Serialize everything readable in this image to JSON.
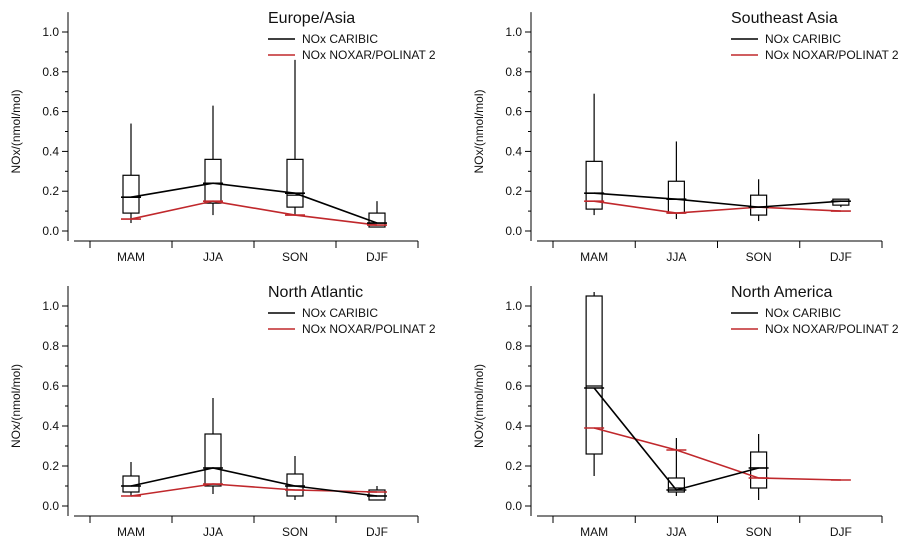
{
  "chart_data": [
    {
      "type": "box-line",
      "title": "Europe/Asia",
      "ylabel": "NOx/(nmol/mol)",
      "ylim": [
        -0.05,
        1.1
      ],
      "yticks": [
        "0.0",
        "0.2",
        "0.4",
        "0.6",
        "0.8",
        "1.0"
      ],
      "categories": [
        "MAM",
        "JJA",
        "SON",
        "DJF"
      ],
      "boxes": [
        {
          "whisker_low": 0.04,
          "q1": 0.09,
          "median": 0.17,
          "q3": 0.28,
          "whisker_high": 0.54
        },
        {
          "whisker_low": 0.08,
          "q1": 0.14,
          "median": 0.24,
          "q3": 0.36,
          "whisker_high": 0.63
        },
        {
          "whisker_low": 0.08,
          "q1": 0.12,
          "median": 0.18,
          "q3": 0.36,
          "whisker_high": 0.86
        },
        {
          "whisker_low": 0.02,
          "q1": 0.02,
          "median": 0.04,
          "q3": 0.09,
          "whisker_high": 0.15
        }
      ],
      "series": [
        {
          "name": "NOx CARIBIC",
          "values": [
            0.17,
            0.24,
            0.19,
            0.04
          ],
          "color": "#000000"
        },
        {
          "name": "NOx NOXAR/POLINAT 2",
          "values": [
            0.06,
            0.15,
            0.08,
            0.03
          ],
          "color": "#c0282c"
        }
      ]
    },
    {
      "type": "box-line",
      "title": "Southeast Asia",
      "ylabel": "NOx/(nmol/mol)",
      "ylim": [
        -0.05,
        1.1
      ],
      "yticks": [
        "0.0",
        "0.2",
        "0.4",
        "0.6",
        "0.8",
        "1.0"
      ],
      "categories": [
        "MAM",
        "JJA",
        "SON",
        "DJF"
      ],
      "boxes": [
        {
          "whisker_low": 0.08,
          "q1": 0.11,
          "median": 0.19,
          "q3": 0.35,
          "whisker_high": 0.69
        },
        {
          "whisker_low": 0.06,
          "q1": 0.09,
          "median": 0.16,
          "q3": 0.25,
          "whisker_high": 0.45
        },
        {
          "whisker_low": 0.05,
          "q1": 0.08,
          "median": 0.12,
          "q3": 0.18,
          "whisker_high": 0.26
        },
        {
          "whisker_low": 0.12,
          "q1": 0.13,
          "median": 0.15,
          "q3": 0.16,
          "whisker_high": 0.16
        }
      ],
      "series": [
        {
          "name": "NOx CARIBIC",
          "values": [
            0.19,
            0.16,
            0.12,
            0.15
          ],
          "color": "#000000"
        },
        {
          "name": "NOx NOXAR/POLINAT 2",
          "values": [
            0.15,
            0.09,
            0.12,
            0.1
          ],
          "color": "#c0282c"
        }
      ]
    },
    {
      "type": "box-line",
      "title": "North Atlantic",
      "ylabel": "NOx/(nmol/mol)",
      "ylim": [
        -0.05,
        1.1
      ],
      "yticks": [
        "0.0",
        "0.2",
        "0.4",
        "0.6",
        "0.8",
        "1.0"
      ],
      "categories": [
        "MAM",
        "JJA",
        "SON",
        "DJF"
      ],
      "boxes": [
        {
          "whisker_low": 0.05,
          "q1": 0.07,
          "median": 0.1,
          "q3": 0.15,
          "whisker_high": 0.22
        },
        {
          "whisker_low": 0.06,
          "q1": 0.1,
          "median": 0.19,
          "q3": 0.36,
          "whisker_high": 0.54
        },
        {
          "whisker_low": 0.03,
          "q1": 0.05,
          "median": 0.1,
          "q3": 0.16,
          "whisker_high": 0.25
        },
        {
          "whisker_low": 0.03,
          "q1": 0.03,
          "median": 0.05,
          "q3": 0.08,
          "whisker_high": 0.1
        }
      ],
      "series": [
        {
          "name": "NOx CARIBIC",
          "values": [
            0.1,
            0.19,
            0.1,
            0.05
          ],
          "color": "#000000"
        },
        {
          "name": "NOx NOXAR/POLINAT 2",
          "values": [
            0.05,
            0.11,
            0.08,
            0.07
          ],
          "color": "#c0282c"
        }
      ]
    },
    {
      "type": "box-line",
      "title": "North America",
      "ylabel": "NOx/(nmol/mol)",
      "ylim": [
        -0.05,
        1.1
      ],
      "yticks": [
        "0.0",
        "0.2",
        "0.4",
        "0.6",
        "0.8",
        "1.0"
      ],
      "categories": [
        "MAM",
        "JJA",
        "SON",
        "DJF"
      ],
      "boxes": [
        {
          "whisker_low": 0.15,
          "q1": 0.26,
          "median": 0.6,
          "q3": 1.05,
          "whisker_high": 1.07
        },
        {
          "whisker_low": 0.05,
          "q1": 0.07,
          "median": 0.09,
          "q3": 0.14,
          "whisker_high": 0.34
        },
        {
          "whisker_low": 0.03,
          "q1": 0.09,
          "median": 0.19,
          "q3": 0.27,
          "whisker_high": 0.36
        },
        null
      ],
      "series": [
        {
          "name": "NOx CARIBIC",
          "values": [
            0.59,
            0.08,
            0.19,
            null
          ],
          "color": "#000000"
        },
        {
          "name": "NOx NOXAR/POLINAT 2",
          "values": [
            0.39,
            0.28,
            0.14,
            0.13
          ],
          "color": "#c0282c"
        }
      ]
    }
  ]
}
